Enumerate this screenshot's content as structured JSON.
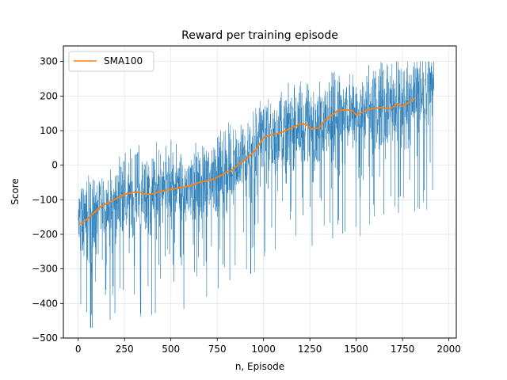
{
  "chart_data": {
    "type": "line",
    "title": "Reward per training episode",
    "xlabel": "n, Episode",
    "ylabel": "Score",
    "xlim": [
      -80,
      2040
    ],
    "ylim": [
      -500,
      345
    ],
    "xticks": [
      0,
      250,
      500,
      750,
      1000,
      1250,
      1500,
      1750,
      2000
    ],
    "yticks": [
      -500,
      -400,
      -300,
      -200,
      -100,
      0,
      100,
      200,
      300
    ],
    "xtick_labels": [
      "0",
      "250",
      "500",
      "750",
      "1000",
      "1250",
      "1500",
      "1750",
      "2000"
    ],
    "ytick_labels": [
      "−500",
      "−400",
      "−300",
      "−200",
      "−100",
      "0",
      "100",
      "200",
      "300"
    ],
    "grid": true,
    "legend": {
      "position": "upper-left",
      "entries": [
        "SMA100"
      ]
    },
    "series": [
      {
        "name": "",
        "role": "raw-score",
        "color": "#1f77b4",
        "episodes": 1920,
        "trend_x": [
          0,
          100,
          200,
          300,
          400,
          500,
          600,
          700,
          800,
          850,
          900,
          1000,
          1100,
          1200,
          1300,
          1400,
          1500,
          1600,
          1700,
          1800,
          1920
        ],
        "trend_y": [
          -170,
          -150,
          -110,
          -85,
          -80,
          -70,
          -60,
          -45,
          -20,
          0,
          20,
          80,
          95,
          115,
          120,
          150,
          150,
          165,
          170,
          200,
          225
        ],
        "spread": 70
      },
      {
        "name": "SMA100",
        "role": "moving-average",
        "color": "#ff7f0e",
        "x": [
          0,
          20,
          50,
          80,
          120,
          160,
          200,
          250,
          300,
          330,
          370,
          400,
          450,
          500,
          550,
          600,
          650,
          700,
          730,
          770,
          800,
          830,
          860,
          900,
          930,
          960,
          1000,
          1040,
          1080,
          1120,
          1160,
          1200,
          1230,
          1260,
          1300,
          1330,
          1370,
          1400,
          1440,
          1480,
          1500,
          1520,
          1560,
          1600,
          1640,
          1680,
          1700,
          1720,
          1750,
          1780,
          1820
        ],
        "y": [
          -170,
          -168,
          -155,
          -140,
          -120,
          -110,
          -98,
          -85,
          -78,
          -78,
          -85,
          -83,
          -75,
          -70,
          -65,
          -60,
          -50,
          -45,
          -40,
          -30,
          -20,
          -15,
          0,
          15,
          30,
          45,
          80,
          88,
          92,
          100,
          110,
          120,
          118,
          105,
          108,
          130,
          145,
          158,
          160,
          158,
          145,
          150,
          160,
          165,
          167,
          163,
          168,
          178,
          170,
          180,
          195
        ]
      }
    ]
  }
}
